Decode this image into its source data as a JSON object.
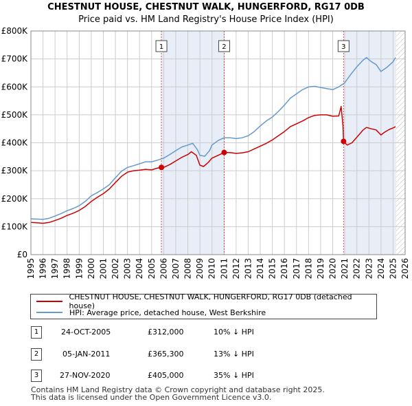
{
  "chart_data": {
    "type": "line",
    "title": "CHESTNUT HOUSE, CHESTNUT WALK, HUNGERFORD, RG17 0DB",
    "subtitle": "Price paid vs. HM Land Registry's House Price Index (HPI)",
    "xlim": [
      1995,
      2026
    ],
    "ylim": [
      0,
      800000
    ],
    "x_ticks": [
      "1995",
      "1996",
      "1997",
      "1998",
      "1999",
      "2000",
      "2001",
      "2002",
      "2003",
      "2004",
      "2005",
      "2006",
      "2007",
      "2008",
      "2009",
      "2010",
      "2011",
      "2012",
      "2013",
      "2014",
      "2015",
      "2016",
      "2017",
      "2018",
      "2019",
      "2020",
      "2021",
      "2022",
      "2023",
      "2024",
      "2025",
      "2026"
    ],
    "y_ticks": [
      {
        "value": 0,
        "label": "£0"
      },
      {
        "value": 100000,
        "label": "£100K"
      },
      {
        "value": 200000,
        "label": "£200K"
      },
      {
        "value": 300000,
        "label": "£300K"
      },
      {
        "value": 400000,
        "label": "£400K"
      },
      {
        "value": 500000,
        "label": "£500K"
      },
      {
        "value": 600000,
        "label": "£600K"
      },
      {
        "value": 700000,
        "label": "£700K"
      },
      {
        "value": 800000,
        "label": "£800K"
      }
    ],
    "shaded_regions": [
      [
        2005.81,
        2011.01
      ],
      [
        2020.9,
        2025.25
      ]
    ],
    "hatched_region": [
      2025.25,
      2026
    ],
    "series": [
      {
        "name": "CHESTNUT HOUSE, CHESTNUT WALK, HUNGERFORD, RG17 0DB (detached house)",
        "color": "#cc0000",
        "points": [
          [
            1995,
            115000
          ],
          [
            1995.5,
            114000
          ],
          [
            1996,
            112000
          ],
          [
            1996.5,
            115000
          ],
          [
            1997,
            122000
          ],
          [
            1997.5,
            130000
          ],
          [
            1998,
            140000
          ],
          [
            1998.5,
            148000
          ],
          [
            1999,
            158000
          ],
          [
            1999.5,
            172000
          ],
          [
            2000,
            190000
          ],
          [
            2000.5,
            205000
          ],
          [
            2001,
            218000
          ],
          [
            2001.5,
            235000
          ],
          [
            2002,
            258000
          ],
          [
            2002.5,
            280000
          ],
          [
            2003,
            295000
          ],
          [
            2003.5,
            300000
          ],
          [
            2004,
            302000
          ],
          [
            2004.5,
            305000
          ],
          [
            2005,
            303000
          ],
          [
            2005.5,
            310000
          ],
          [
            2005.81,
            312000
          ],
          [
            2006,
            312000
          ],
          [
            2006.5,
            322000
          ],
          [
            2007,
            335000
          ],
          [
            2007.5,
            348000
          ],
          [
            2008,
            358000
          ],
          [
            2008.3,
            368000
          ],
          [
            2008.7,
            355000
          ],
          [
            2009,
            320000
          ],
          [
            2009.3,
            315000
          ],
          [
            2009.7,
            330000
          ],
          [
            2010,
            345000
          ],
          [
            2010.5,
            355000
          ],
          [
            2011.01,
            365300
          ],
          [
            2011.5,
            365000
          ],
          [
            2012,
            362000
          ],
          [
            2012.5,
            364000
          ],
          [
            2013,
            368000
          ],
          [
            2013.5,
            378000
          ],
          [
            2014,
            388000
          ],
          [
            2014.5,
            398000
          ],
          [
            2015,
            410000
          ],
          [
            2015.5,
            425000
          ],
          [
            2016,
            440000
          ],
          [
            2016.5,
            458000
          ],
          [
            2017,
            468000
          ],
          [
            2017.5,
            478000
          ],
          [
            2018,
            490000
          ],
          [
            2018.5,
            498000
          ],
          [
            2019,
            500000
          ],
          [
            2019.5,
            500000
          ],
          [
            2020,
            495000
          ],
          [
            2020.5,
            496000
          ],
          [
            2020.7,
            530000
          ],
          [
            2020.85,
            460000
          ],
          [
            2020.9,
            405000
          ],
          [
            2021.2,
            392000
          ],
          [
            2021.6,
            400000
          ],
          [
            2022,
            420000
          ],
          [
            2022.5,
            445000
          ],
          [
            2022.8,
            455000
          ],
          [
            2023.2,
            450000
          ],
          [
            2023.6,
            446000
          ],
          [
            2024,
            428000
          ],
          [
            2024.3,
            438000
          ],
          [
            2024.7,
            448000
          ],
          [
            2025.1,
            455000
          ],
          [
            2025.2,
            458000
          ]
        ]
      },
      {
        "name": "HPI: Average price, detached house, West Berkshire",
        "color": "#6699cc",
        "points": [
          [
            1995,
            128000
          ],
          [
            1995.5,
            127000
          ],
          [
            1996,
            126000
          ],
          [
            1996.5,
            130000
          ],
          [
            1997,
            138000
          ],
          [
            1997.5,
            147000
          ],
          [
            1998,
            157000
          ],
          [
            1998.5,
            165000
          ],
          [
            1999,
            175000
          ],
          [
            1999.5,
            190000
          ],
          [
            2000,
            210000
          ],
          [
            2000.5,
            222000
          ],
          [
            2001,
            235000
          ],
          [
            2001.5,
            250000
          ],
          [
            2002,
            275000
          ],
          [
            2002.5,
            298000
          ],
          [
            2003,
            312000
          ],
          [
            2003.5,
            318000
          ],
          [
            2004,
            325000
          ],
          [
            2004.5,
            332000
          ],
          [
            2005,
            332000
          ],
          [
            2005.5,
            338000
          ],
          [
            2006,
            345000
          ],
          [
            2006.5,
            358000
          ],
          [
            2007,
            372000
          ],
          [
            2007.5,
            385000
          ],
          [
            2008,
            392000
          ],
          [
            2008.4,
            398000
          ],
          [
            2008.8,
            375000
          ],
          [
            2009,
            355000
          ],
          [
            2009.4,
            352000
          ],
          [
            2009.8,
            372000
          ],
          [
            2010,
            392000
          ],
          [
            2010.5,
            408000
          ],
          [
            2011,
            418000
          ],
          [
            2011.5,
            418000
          ],
          [
            2012,
            415000
          ],
          [
            2012.5,
            418000
          ],
          [
            2013,
            425000
          ],
          [
            2013.5,
            440000
          ],
          [
            2014,
            460000
          ],
          [
            2014.5,
            478000
          ],
          [
            2015,
            492000
          ],
          [
            2015.5,
            512000
          ],
          [
            2016,
            535000
          ],
          [
            2016.5,
            560000
          ],
          [
            2017,
            575000
          ],
          [
            2017.5,
            590000
          ],
          [
            2018,
            600000
          ],
          [
            2018.5,
            602000
          ],
          [
            2019,
            598000
          ],
          [
            2019.5,
            594000
          ],
          [
            2020,
            590000
          ],
          [
            2020.5,
            600000
          ],
          [
            2021,
            615000
          ],
          [
            2021.5,
            645000
          ],
          [
            2022,
            672000
          ],
          [
            2022.5,
            695000
          ],
          [
            2022.8,
            705000
          ],
          [
            2023.2,
            690000
          ],
          [
            2023.6,
            680000
          ],
          [
            2024,
            655000
          ],
          [
            2024.5,
            670000
          ],
          [
            2025,
            690000
          ],
          [
            2025.2,
            705000
          ]
        ]
      }
    ],
    "sales": [
      {
        "n": "1",
        "year": 2005.81,
        "price": 312000
      },
      {
        "n": "2",
        "year": 2011.01,
        "price": 365300
      },
      {
        "n": "3",
        "year": 2020.9,
        "price": 405000
      }
    ]
  },
  "legend": {
    "property_label": "CHESTNUT HOUSE, CHESTNUT WALK, HUNGERFORD, RG17 0DB (detached house)",
    "hpi_label": "HPI: Average price, detached house, West Berkshire"
  },
  "transactions": [
    {
      "n": "1",
      "date": "24-OCT-2005",
      "price": "£312,000",
      "hpi": "10% ↓ HPI"
    },
    {
      "n": "2",
      "date": "05-JAN-2011",
      "price": "£365,300",
      "hpi": "13% ↓ HPI"
    },
    {
      "n": "3",
      "date": "27-NOV-2020",
      "price": "£405,000",
      "hpi": "35% ↓ HPI"
    }
  ],
  "footer": {
    "line1": "Contains HM Land Registry data © Crown copyright and database right 2025.",
    "line2": "This data is licensed under the Open Government Licence v3.0."
  },
  "colors": {
    "property": "#cc0000",
    "hpi": "#6699cc",
    "shade": "#e8eef8",
    "grid": "#cccccc"
  }
}
